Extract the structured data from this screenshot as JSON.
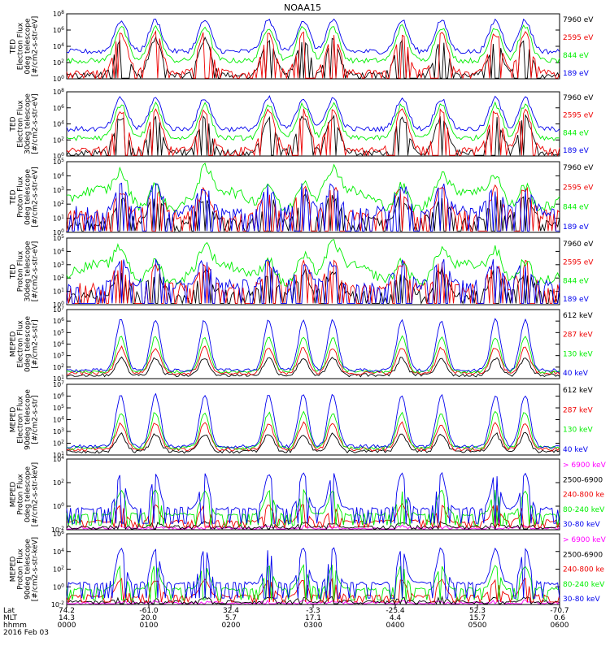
{
  "title": "NOAA15",
  "colors": {
    "black": "#000000",
    "red": "#ee0000",
    "green": "#00ee00",
    "blue": "#0000ee",
    "magenta": "#ff00ff"
  },
  "chart_data": [
    {
      "type": "line",
      "panel": 1,
      "ylabel": [
        "TED",
        "Electron Flux",
        "0deg telescope",
        "[#/cm2-s-str-eV]"
      ],
      "yticks": [
        "10^0",
        "10^2",
        "10^4",
        "10^6",
        "10^8"
      ],
      "ylim_log10": [
        0,
        8
      ],
      "series": [
        {
          "name": "7960 eV",
          "color": "black"
        },
        {
          "name": "2595 eV",
          "color": "red"
        },
        {
          "name": "844 eV",
          "color": "green"
        },
        {
          "name": "189 eV",
          "color": "blue"
        }
      ]
    },
    {
      "type": "line",
      "panel": 2,
      "ylabel": [
        "TED",
        "Electron Flux",
        "30deg telescope",
        "[#/cm2-s-str-eV]"
      ],
      "yticks": [
        "10^0",
        "10^2",
        "10^4",
        "10^6",
        "10^8"
      ],
      "ylim_log10": [
        0,
        8
      ],
      "series": [
        {
          "name": "7960 eV",
          "color": "black"
        },
        {
          "name": "2595 eV",
          "color": "red"
        },
        {
          "name": "844 eV",
          "color": "green"
        },
        {
          "name": "189 eV",
          "color": "blue"
        }
      ]
    },
    {
      "type": "line",
      "panel": 3,
      "ylabel": [
        "TED",
        "Proton Flux",
        "0deg telescope",
        "[#/cm2-s-str-eV]"
      ],
      "yticks": [
        "10^0",
        "10^1",
        "10^2",
        "10^3",
        "10^4",
        "10^5"
      ],
      "ylim_log10": [
        0,
        5
      ],
      "series": [
        {
          "name": "7960 eV",
          "color": "black"
        },
        {
          "name": "2595 eV",
          "color": "red"
        },
        {
          "name": "844 eV",
          "color": "green"
        },
        {
          "name": "189 eV",
          "color": "blue"
        }
      ]
    },
    {
      "type": "line",
      "panel": 4,
      "ylabel": [
        "TED",
        "Proton Flux",
        "30deg telescope",
        "[#/cm2-s-str-eV]"
      ],
      "yticks": [
        "10^0",
        "10^1",
        "10^2",
        "10^3",
        "10^4",
        "10^5"
      ],
      "ylim_log10": [
        0,
        5
      ],
      "series": [
        {
          "name": "7960 eV",
          "color": "black"
        },
        {
          "name": "2595 eV",
          "color": "red"
        },
        {
          "name": "844 eV",
          "color": "green"
        },
        {
          "name": "189 eV",
          "color": "blue"
        }
      ]
    },
    {
      "type": "line",
      "panel": 5,
      "ylabel": [
        "MEPED",
        "Electron Flux",
        "0deg telescope",
        "[#/cm2-s-str]"
      ],
      "yticks": [
        "10^1",
        "10^2",
        "10^3",
        "10^4",
        "10^5",
        "10^6",
        "10^7"
      ],
      "ylim_log10": [
        1,
        7
      ],
      "series": [
        {
          "name": "612 keV",
          "color": "black"
        },
        {
          "name": "287 keV",
          "color": "red"
        },
        {
          "name": "130 keV",
          "color": "green"
        },
        {
          "name": "40 keV",
          "color": "blue"
        }
      ]
    },
    {
      "type": "line",
      "panel": 6,
      "ylabel": [
        "MEPED",
        "Electron Flux",
        "90deg telescope",
        "[#/cm2-s-str]"
      ],
      "yticks": [
        "10^1",
        "10^2",
        "10^3",
        "10^4",
        "10^5",
        "10^6",
        "10^7"
      ],
      "ylim_log10": [
        1,
        7
      ],
      "series": [
        {
          "name": "612 keV",
          "color": "black"
        },
        {
          "name": "287 keV",
          "color": "red"
        },
        {
          "name": "130 keV",
          "color": "green"
        },
        {
          "name": "40 keV",
          "color": "blue"
        }
      ]
    },
    {
      "type": "line",
      "panel": 7,
      "ylabel": [
        "MEPED",
        "Proton Flux",
        "0deg telescope",
        "[#/cm2-s-str-keV]"
      ],
      "yticks": [
        "10^-2",
        "10^0",
        "10^2",
        "10^4"
      ],
      "ylim_log10": [
        -2,
        6
      ],
      "series": [
        {
          "name": "> 6900 keV",
          "color": "magenta"
        },
        {
          "name": "2500-6900",
          "color": "black"
        },
        {
          "name": "240-800 ke",
          "color": "red"
        },
        {
          "name": "80-240 keV",
          "color": "green"
        },
        {
          "name": "30-80 keV",
          "color": "blue"
        }
      ]
    },
    {
      "type": "line",
      "panel": 8,
      "ylabel": [
        "MEPED",
        "Proton Flux",
        "90deg telescope",
        "[#/cm2-s-str-keV]"
      ],
      "yticks": [
        "10^-2",
        "10^0",
        "10^2",
        "10^4",
        "10^6"
      ],
      "ylim_log10": [
        -2,
        6
      ],
      "series": [
        {
          "name": "> 6900 keV",
          "color": "magenta"
        },
        {
          "name": "2500-6900",
          "color": "black"
        },
        {
          "name": "240-800 ke",
          "color": "red"
        },
        {
          "name": "80-240 keV",
          "color": "green"
        },
        {
          "name": "30-80 keV",
          "color": "blue"
        }
      ]
    }
  ],
  "xaxis": {
    "row_labels": [
      "Lat",
      "MLT",
      "hhmm",
      "2016 Feb 03"
    ],
    "ticks": [
      {
        "lat": "74.2",
        "mlt": "14.3",
        "hhmm": "0000"
      },
      {
        "lat": "-61.0",
        "mlt": "20.0",
        "hhmm": "0100"
      },
      {
        "lat": "32.4",
        "mlt": "5.7",
        "hhmm": "0200"
      },
      {
        "lat": "-3.3",
        "mlt": "17.1",
        "hhmm": "0300"
      },
      {
        "lat": "-25.4",
        "mlt": "4.4",
        "hhmm": "0400"
      },
      {
        "lat": "52.3",
        "mlt": "15.7",
        "hhmm": "0500"
      },
      {
        "lat": "-70.7",
        "mlt": "0.6",
        "hhmm": "0600"
      }
    ]
  }
}
